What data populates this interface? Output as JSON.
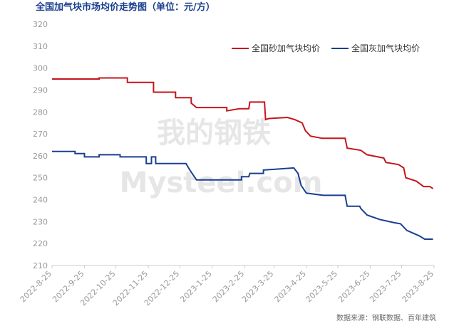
{
  "chart_data": {
    "type": "line",
    "title": "全国加气块市场均价走势图（单位：元/方）",
    "source": "数据来源：钢联数据、百年建筑",
    "watermark": [
      "我的钢铁",
      "Mysteel.com"
    ],
    "ylim": [
      210,
      320
    ],
    "yticks": [
      210,
      220,
      230,
      240,
      250,
      260,
      270,
      280,
      290,
      300,
      310,
      320
    ],
    "xlim": [
      "2022-8-25",
      "2023-8-25"
    ],
    "xticks": [
      "2022-8-25",
      "2022-9-25",
      "2022-10-25",
      "2022-11-25",
      "2022-12-25",
      "2023-1-25",
      "2023-2-25",
      "2023-3-25",
      "2023-4-25",
      "2023-5-25",
      "2023-6-25",
      "2023-7-25",
      "2023-8-25"
    ],
    "grid": false,
    "legend": "upper right",
    "series": [
      {
        "name": "全国砂加气块均价",
        "color": "#c4161c",
        "x": [
          "2022-8-25",
          "2022-10-9",
          "2022-10-9",
          "2022-11-5",
          "2022-11-5",
          "2022-11-30",
          "2022-11-30",
          "2022-12-21",
          "2022-12-21",
          "2023-1-5",
          "2023-1-5",
          "2023-1-10",
          "2023-2-8",
          "2023-2-8",
          "2023-2-20",
          "2023-3-1",
          "2023-3-2",
          "2023-3-16",
          "2023-3-17",
          "2023-3-20",
          "2023-4-7",
          "2023-4-14",
          "2023-4-21",
          "2023-4-24",
          "2023-4-29",
          "2023-5-10",
          "2023-6-1",
          "2023-6-3",
          "2023-6-16",
          "2023-6-22",
          "2023-7-8",
          "2023-7-10",
          "2023-7-22",
          "2023-7-27",
          "2023-7-29",
          "2023-8-8",
          "2023-8-15",
          "2023-8-21",
          "2023-8-24"
        ],
        "values": [
          295,
          295,
          295.5,
          295.5,
          293.5,
          293.5,
          289,
          289,
          286.5,
          286.5,
          284,
          282,
          282,
          280.5,
          281.5,
          281.5,
          284.5,
          284.5,
          276.5,
          277,
          277.5,
          276.5,
          275,
          271.5,
          269,
          268,
          268,
          263.5,
          262.5,
          260.5,
          259,
          257,
          256,
          254.5,
          250,
          248.5,
          246,
          246,
          245
        ]
      },
      {
        "name": "全国灰加气块均价",
        "color": "#1a3f8f",
        "x": [
          "2022-8-25",
          "2022-9-16",
          "2022-9-16",
          "2022-9-25",
          "2022-9-25",
          "2022-10-9",
          "2022-10-9",
          "2022-10-29",
          "2022-10-29",
          "2022-11-23",
          "2022-11-23",
          "2022-11-28",
          "2022-11-28",
          "2022-12-2",
          "2022-12-2",
          "2022-12-31",
          "2023-1-3",
          "2023-1-10",
          "2023-2-22",
          "2023-2-22",
          "2023-3-1",
          "2023-3-2",
          "2023-3-15",
          "2023-3-15",
          "2023-3-30",
          "2023-4-13",
          "2023-4-17",
          "2023-4-20",
          "2023-4-25",
          "2023-5-11",
          "2023-6-1",
          "2023-6-3",
          "2023-6-15",
          "2023-6-16",
          "2023-6-22",
          "2023-7-4",
          "2023-7-18",
          "2023-7-24",
          "2023-7-30",
          "2023-8-11",
          "2023-8-16",
          "2023-8-24"
        ],
        "values": [
          262,
          262,
          261,
          261,
          259.5,
          259.5,
          260.5,
          260.5,
          259.5,
          259.5,
          256.5,
          256.5,
          259.5,
          259.5,
          256.5,
          256.5,
          254,
          249,
          249,
          250.5,
          250.5,
          252,
          252,
          253.5,
          254,
          254.5,
          252,
          246.5,
          243,
          242,
          242,
          237,
          237,
          236,
          233,
          231,
          229.5,
          229,
          226,
          223.5,
          222,
          222
        ]
      }
    ]
  }
}
